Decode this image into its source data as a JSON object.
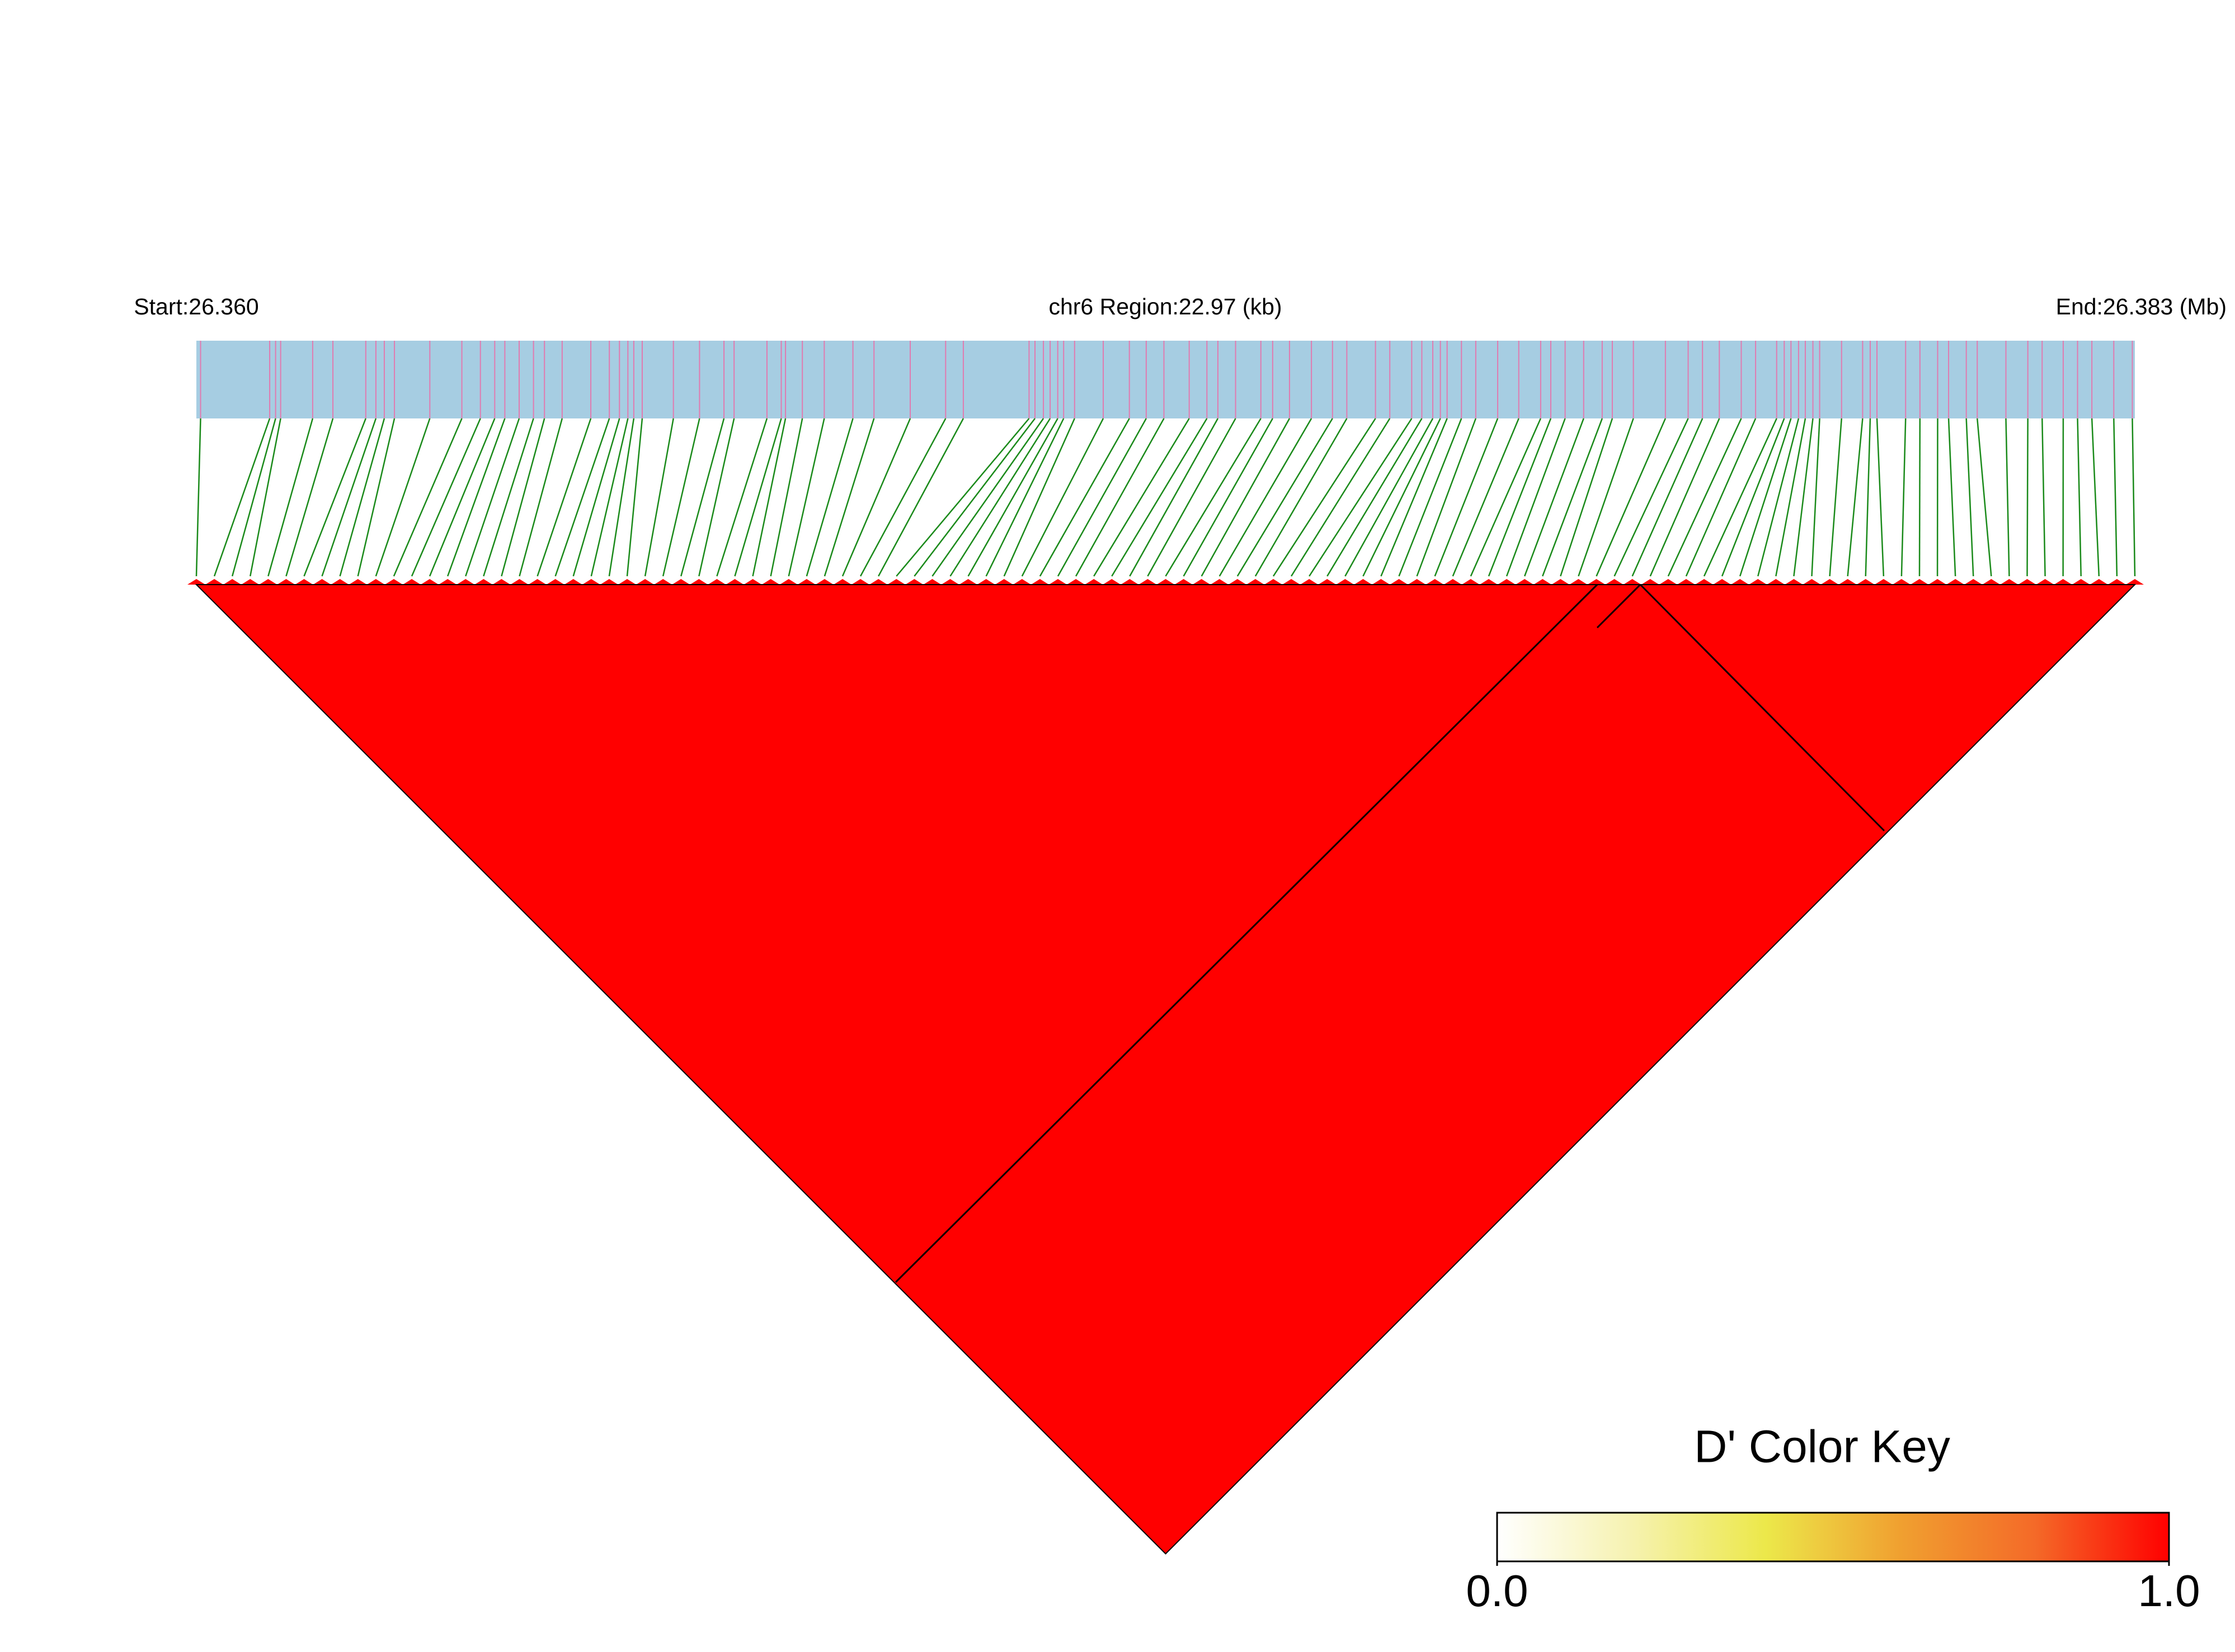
{
  "chart_data": {
    "type": "ld-heatmap",
    "start_label": "Start:26.360",
    "region_label": "chr6 Region:22.97 (kb)",
    "end_label": "End:26.383 (Mb)",
    "xlim": [
      26.36,
      26.383
    ],
    "bar_color": "#a6cde2",
    "snp_color": "#e07bb0",
    "connector_color": "#1a8a1a",
    "heatmap_color": "#ff0000",
    "snp_positions": [
      26.36005,
      26.36087,
      26.36094,
      26.361,
      26.36138,
      26.36162,
      26.36201,
      26.36213,
      26.36223,
      26.36235,
      26.36277,
      26.36315,
      26.36337,
      26.36354,
      26.36366,
      26.36383,
      26.364,
      26.36413,
      26.36434,
      26.36468,
      26.3649,
      26.36502,
      26.36512,
      26.36519,
      26.36529,
      26.36566,
      26.36597,
      26.36626,
      26.36638,
      26.36677,
      26.36694,
      26.36699,
      26.36719,
      26.36745,
      26.36779,
      26.36804,
      26.36847,
      26.36889,
      26.3691,
      26.36988,
      26.36995,
      26.37005,
      26.37013,
      26.37022,
      26.37029,
      26.37042,
      26.37076,
      26.37107,
      26.37127,
      26.37148,
      26.37178,
      26.37199,
      26.37212,
      26.37233,
      26.37263,
      26.37277,
      26.37297,
      26.37323,
      26.37348,
      26.37365,
      26.37399,
      26.37416,
      26.37442,
      26.37454,
      26.37467,
      26.37476,
      26.37484,
      26.37501,
      26.37518,
      26.37544,
      26.37569,
      26.37595,
      26.37607,
      26.37624,
      26.37646,
      26.37668,
      26.3768,
      26.37705,
      26.37743,
      26.3777,
      26.37787,
      26.37807,
      26.37833,
      26.3785,
      26.37875,
      26.37884,
      26.37892,
      26.37901,
      26.37909,
      26.37918,
      26.37926,
      26.37952,
      26.37977,
      26.37986,
      26.37994,
      26.38028,
      26.38045,
      26.38066,
      26.38079,
      26.381,
      26.38113,
      26.38147,
      26.38173,
      26.3819,
      26.38215,
      26.38232,
      26.38249,
      26.38275,
      26.38297
    ],
    "color_key": {
      "title": "D' Color Key",
      "lim": [
        0,
        1
      ],
      "ticks": [
        {
          "value": 0,
          "label": "0.0"
        },
        {
          "value": 1,
          "label": "1.0"
        }
      ],
      "colors": [
        "#ffffff",
        "#f6f2b0",
        "#ece84a",
        "#f0a030",
        "#f46a28",
        "#ff0000"
      ]
    }
  }
}
